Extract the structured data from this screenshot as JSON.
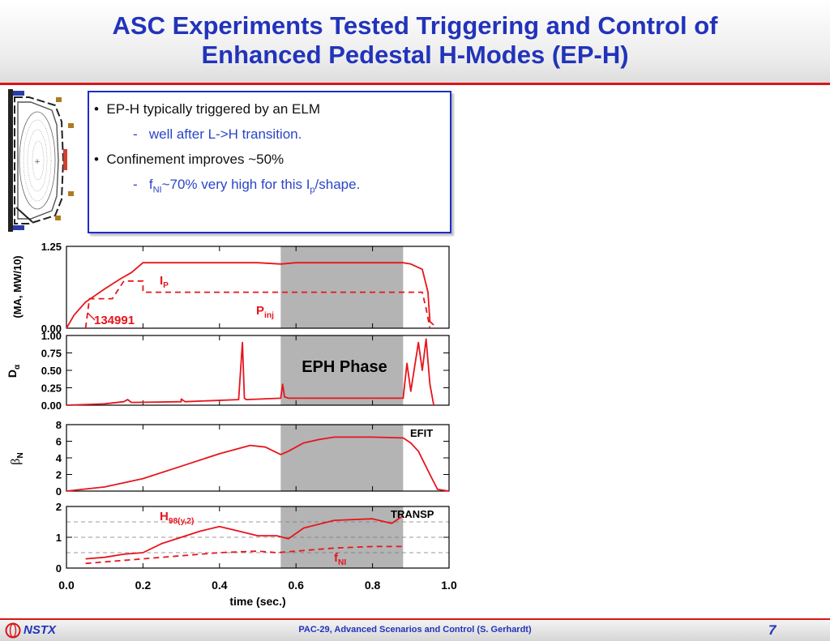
{
  "title_line1": "ASC Experiments Tested Triggering and Control of",
  "title_line2": "Enhanced Pedestal H-Modes (EP-H)",
  "bullets": {
    "b1": "EP-H typically triggered by an ELM",
    "b2": "well after L->H transition.",
    "b3": "Confinement improves ~50%",
    "b4_pre": "f",
    "b4_sub": "NI",
    "b4_mid": "~70% very high for this I",
    "b4_sub2": "p",
    "b4_post": "/shape."
  },
  "footer": {
    "logo_text": "NSTX",
    "center": "PAC-29, Advanced Scenarios and Control (S. Gerhardt)",
    "page": "7"
  },
  "colors": {
    "title": "#2233bb",
    "rule": "#d8161b",
    "trace": "#e8141c",
    "shade": "#b4b4b4"
  },
  "chart_data": {
    "type": "line",
    "xlabel": "time (sec.)",
    "xlim": [
      0.0,
      1.0
    ],
    "x_ticks": [
      "0.0",
      "0.2",
      "0.4",
      "0.6",
      "0.8",
      "1.0"
    ],
    "shaded_region": {
      "x": [
        0.56,
        0.88
      ],
      "label": "EPH Phase"
    },
    "panels": [
      {
        "ylabel": "(MA, MW/10)",
        "ylim": [
          0,
          1.25
        ],
        "y_ticks": [
          "1.25",
          "0.00"
        ],
        "y_tick_values": [
          1.25,
          0.0
        ],
        "annotations": [
          {
            "text": "134991"
          }
        ],
        "series": [
          {
            "name": "Ip",
            "label_main": "I",
            "label_sub": "P",
            "style": "solid",
            "x": [
              0,
              0.02,
              0.05,
              0.1,
              0.14,
              0.17,
              0.2,
              0.3,
              0.5,
              0.56,
              0.6,
              0.88,
              0.9,
              0.93,
              0.945,
              0.95,
              0.96
            ],
            "y": [
              0,
              0.2,
              0.4,
              0.6,
              0.75,
              0.85,
              1.0,
              1.0,
              1.0,
              0.98,
              1.0,
              1.0,
              0.98,
              0.9,
              0.55,
              0.1,
              0.05
            ]
          },
          {
            "name": "Pinj",
            "label_main": "P",
            "label_sub": "inj",
            "style": "dashed",
            "x": [
              0.05,
              0.06,
              0.12,
              0.15,
              0.2,
              0.2,
              0.93,
              0.94,
              0.95
            ],
            "y": [
              0,
              0.45,
              0.45,
              0.72,
              0.72,
              0.55,
              0.55,
              0.3,
              0
            ]
          }
        ]
      },
      {
        "ylabel": "D",
        "ylabel_sub": "α",
        "ylim": [
          0,
          1.0
        ],
        "y_ticks": [
          "1.00",
          "0.75",
          "0.50",
          "0.25",
          "0.00"
        ],
        "y_tick_values": [
          1.0,
          0.75,
          0.5,
          0.25,
          0.0
        ],
        "series": [
          {
            "name": "Dα",
            "style": "solid",
            "x": [
              0,
              0.1,
              0.15,
              0.16,
              0.17,
              0.3,
              0.3,
              0.31,
              0.45,
              0.46,
              0.465,
              0.47,
              0.56,
              0.565,
              0.57,
              0.58,
              0.6,
              0.88,
              0.89,
              0.9,
              0.92,
              0.93,
              0.94,
              0.95,
              0.96
            ],
            "y": [
              0,
              0.02,
              0.05,
              0.08,
              0.04,
              0.05,
              0.09,
              0.05,
              0.08,
              0.9,
              0.1,
              0.08,
              0.1,
              0.3,
              0.12,
              0.1,
              0.1,
              0.1,
              0.6,
              0.2,
              0.9,
              0.5,
              0.95,
              0.3,
              0
            ]
          }
        ]
      },
      {
        "ylabel": "β",
        "ylabel_sub": "N",
        "ylim": [
          0,
          8
        ],
        "y_ticks": [
          "8",
          "6",
          "4",
          "2",
          "0"
        ],
        "y_tick_values": [
          8,
          6,
          4,
          2,
          0
        ],
        "annotations": [
          {
            "text": "EFIT"
          }
        ],
        "series": [
          {
            "name": "βN",
            "style": "solid",
            "x": [
              0,
              0.1,
              0.2,
              0.3,
              0.4,
              0.48,
              0.52,
              0.56,
              0.58,
              0.62,
              0.66,
              0.7,
              0.8,
              0.88,
              0.9,
              0.92,
              0.95,
              0.97,
              1.0
            ],
            "y": [
              0,
              0.5,
              1.5,
              3,
              4.5,
              5.5,
              5.3,
              4.4,
              4.8,
              5.8,
              6.2,
              6.5,
              6.5,
              6.4,
              5.8,
              4.8,
              2.0,
              0.2,
              0
            ]
          }
        ]
      },
      {
        "ylim": [
          0,
          2
        ],
        "y_ticks": [
          "2",
          "1",
          "0"
        ],
        "y_tick_values": [
          2,
          1,
          0
        ],
        "ref_lines": [
          1.5,
          1.0,
          0.5
        ],
        "annotations": [
          {
            "text": "TRANSP"
          }
        ],
        "series": [
          {
            "name": "H98(y,2)",
            "label_main": "H",
            "label_sub": "98(y,2)",
            "style": "solid",
            "x": [
              0.05,
              0.1,
              0.15,
              0.2,
              0.25,
              0.3,
              0.35,
              0.4,
              0.45,
              0.5,
              0.55,
              0.58,
              0.62,
              0.7,
              0.8,
              0.85,
              0.88
            ],
            "y": [
              0.3,
              0.35,
              0.45,
              0.5,
              0.8,
              1.0,
              1.2,
              1.35,
              1.2,
              1.05,
              1.05,
              0.95,
              1.3,
              1.55,
              1.6,
              1.45,
              1.7
            ]
          },
          {
            "name": "fNI",
            "label_main": "f",
            "label_sub": "NI",
            "style": "dashed",
            "x": [
              0.05,
              0.1,
              0.2,
              0.3,
              0.4,
              0.5,
              0.55,
              0.6,
              0.7,
              0.8,
              0.88
            ],
            "y": [
              0.15,
              0.2,
              0.3,
              0.4,
              0.5,
              0.55,
              0.5,
              0.55,
              0.65,
              0.7,
              0.7
            ]
          }
        ]
      }
    ]
  }
}
